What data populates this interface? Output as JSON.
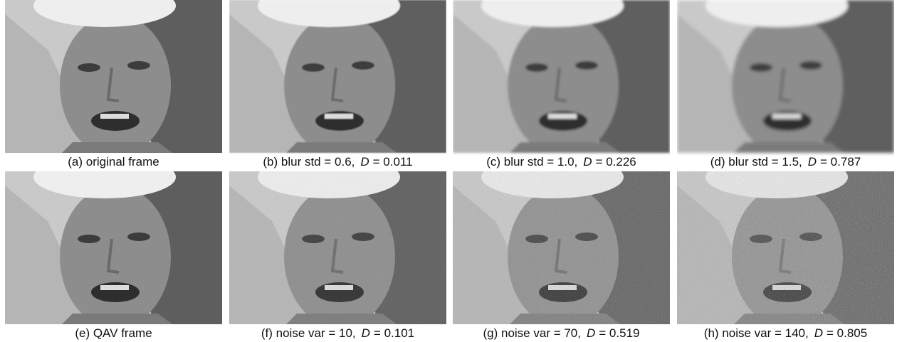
{
  "panels": [
    {
      "caption": "(a) original frame"
    },
    {
      "caption": "(b) blur std = 0.6,",
      "metric": "D",
      "value": "= 0.011"
    },
    {
      "caption": "(c) blur std = 1.0,",
      "metric": "D",
      "value": "= 0.226"
    },
    {
      "caption": "(d) blur std = 1.5,",
      "metric": "D",
      "value": "= 0.787"
    },
    {
      "caption": "(e) QAV frame"
    },
    {
      "caption": "(f) noise var = 10,",
      "metric": "D",
      "value": "= 0.101"
    },
    {
      "caption": "(g) noise var = 70,",
      "metric": "D",
      "value": "= 0.519"
    },
    {
      "caption": "(h) noise var = 140,",
      "metric": "D",
      "value": "= 0.805"
    }
  ]
}
